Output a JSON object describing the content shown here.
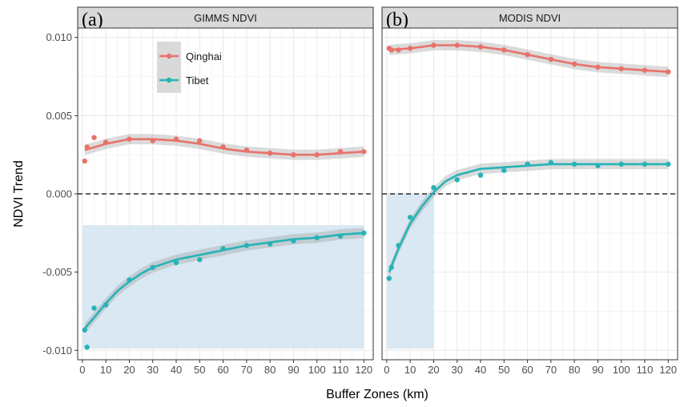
{
  "y_axis_title": "NDVI Trend",
  "x_axis_title": "Buffer Zones (km)",
  "legend": {
    "items": [
      {
        "name": "Qinghai",
        "color": "#E8726A"
      },
      {
        "name": "Tibet",
        "color": "#26B3B7"
      }
    ]
  },
  "chart_data": [
    {
      "type": "scatter",
      "panel_letter": "(a)",
      "title": "GIMMS NDVI",
      "xlim": [
        -2,
        124
      ],
      "ylim": [
        -0.0106,
        0.0106
      ],
      "x_ticks": [
        0,
        10,
        20,
        30,
        40,
        50,
        60,
        70,
        80,
        90,
        100,
        110,
        120
      ],
      "y_ticks": [
        -0.01,
        -0.005,
        0.0,
        0.005,
        0.01
      ],
      "y_tick_labels": [
        "-0.010",
        "-0.005",
        "0.000",
        "0.005",
        "0.010"
      ],
      "reference_line_y": 0,
      "highlight_region": {
        "x": [
          0,
          120
        ],
        "y": [
          -0.0099,
          -0.002
        ]
      },
      "series": [
        {
          "name": "Qinghai",
          "color": "#E8726A",
          "x": [
            1,
            2,
            5,
            10,
            20,
            30,
            40,
            50,
            60,
            70,
            80,
            90,
            100,
            110,
            120
          ],
          "y": [
            0.0021,
            0.003,
            0.0036,
            0.0033,
            0.0035,
            0.0034,
            0.0035,
            0.0034,
            0.003,
            0.0028,
            0.0026,
            0.0025,
            0.0025,
            0.0027,
            0.0027
          ],
          "fit_x": [
            1,
            10,
            20,
            30,
            40,
            50,
            60,
            70,
            80,
            90,
            100,
            110,
            120
          ],
          "fit_y": [
            0.0028,
            0.0032,
            0.0035,
            0.0035,
            0.0034,
            0.0032,
            0.0029,
            0.0027,
            0.0026,
            0.0025,
            0.0025,
            0.0026,
            0.0027
          ]
        },
        {
          "name": "Tibet",
          "color": "#26B3B7",
          "x": [
            1,
            2,
            5,
            10,
            20,
            30,
            40,
            50,
            60,
            70,
            80,
            90,
            100,
            110,
            120
          ],
          "y": [
            -0.0087,
            -0.0098,
            -0.0073,
            -0.0071,
            -0.0055,
            -0.0047,
            -0.0044,
            -0.0042,
            -0.0035,
            -0.0033,
            -0.0032,
            -0.003,
            -0.0028,
            -0.0027,
            -0.0025
          ],
          "fit_x": [
            1,
            5,
            10,
            15,
            20,
            25,
            30,
            40,
            50,
            60,
            70,
            80,
            90,
            100,
            110,
            120
          ],
          "fit_y": [
            -0.0086,
            -0.0079,
            -0.007,
            -0.0062,
            -0.0056,
            -0.0051,
            -0.0047,
            -0.0042,
            -0.0039,
            -0.0036,
            -0.0033,
            -0.0031,
            -0.0029,
            -0.0028,
            -0.0026,
            -0.0025
          ]
        }
      ]
    },
    {
      "type": "scatter",
      "panel_letter": "(b)",
      "title": "MODIS NDVI",
      "xlim": [
        -2,
        124
      ],
      "ylim": [
        -0.0106,
        0.0106
      ],
      "x_ticks": [
        0,
        10,
        20,
        30,
        40,
        50,
        60,
        70,
        80,
        90,
        100,
        110,
        120
      ],
      "reference_line_y": 0,
      "highlight_region": {
        "x": [
          0,
          20
        ],
        "y": [
          -0.0099,
          0.0
        ]
      },
      "series": [
        {
          "name": "Qinghai",
          "color": "#E8726A",
          "x": [
            1,
            2,
            5,
            10,
            20,
            30,
            40,
            50,
            60,
            70,
            80,
            90,
            100,
            110,
            120
          ],
          "y": [
            0.0093,
            0.0092,
            0.0092,
            0.0093,
            0.0095,
            0.0095,
            0.0094,
            0.0092,
            0.0089,
            0.0086,
            0.0083,
            0.0081,
            0.008,
            0.0079,
            0.0078
          ],
          "fit_x": [
            1,
            10,
            20,
            30,
            40,
            50,
            60,
            70,
            80,
            90,
            100,
            110,
            120
          ],
          "fit_y": [
            0.0092,
            0.0093,
            0.0095,
            0.0095,
            0.0094,
            0.0092,
            0.0089,
            0.0086,
            0.0083,
            0.0081,
            0.008,
            0.0079,
            0.0078
          ]
        },
        {
          "name": "Tibet",
          "color": "#26B3B7",
          "x": [
            1,
            2,
            5,
            10,
            20,
            30,
            40,
            50,
            60,
            70,
            80,
            90,
            100,
            110,
            120
          ],
          "y": [
            -0.0054,
            -0.0047,
            -0.0033,
            -0.0015,
            0.0004,
            0.0009,
            0.0012,
            0.0015,
            0.0019,
            0.002,
            0.0019,
            0.0018,
            0.0019,
            0.0019,
            0.0019
          ],
          "fit_x": [
            1,
            5,
            10,
            15,
            20,
            25,
            30,
            40,
            50,
            60,
            70,
            80,
            90,
            100,
            110,
            120
          ],
          "fit_y": [
            -0.005,
            -0.0035,
            -0.0019,
            -0.0008,
            0.0001,
            0.0008,
            0.0012,
            0.0016,
            0.0017,
            0.0018,
            0.0019,
            0.0019,
            0.0019,
            0.0019,
            0.0019,
            0.0019
          ]
        }
      ]
    }
  ]
}
